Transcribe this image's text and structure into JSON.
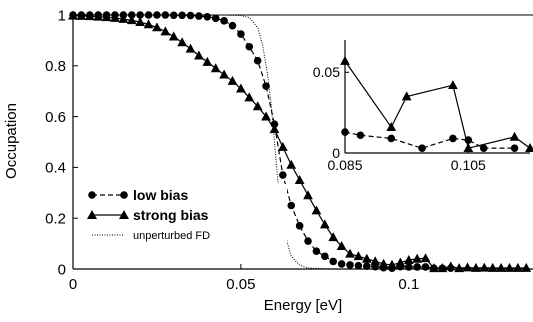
{
  "chart_data": [
    {
      "type": "line",
      "xlabel": "Energy [eV]",
      "ylabel": "Occupation",
      "xlim": [
        0,
        0.137
      ],
      "ylim": [
        0,
        1
      ],
      "xticks": [
        0,
        0.05,
        0.1
      ],
      "xtick_labels": [
        "0",
        "0.05",
        "0.1"
      ],
      "yticks": [
        0,
        0.2,
        0.4,
        0.6,
        0.8,
        1
      ],
      "ytick_labels": [
        "0",
        "0.2",
        "0.4",
        "0.6",
        "0.8",
        "1"
      ],
      "reference_line_y": 1,
      "legend_position": "bottom-left",
      "series": [
        {
          "name": "low bias",
          "marker": "circle",
          "line_style": "dashed",
          "x": [
            0,
            0.0025,
            0.005,
            0.0075,
            0.01,
            0.0125,
            0.015,
            0.0175,
            0.02,
            0.0225,
            0.025,
            0.0275,
            0.03,
            0.0325,
            0.035,
            0.0375,
            0.04,
            0.0425,
            0.045,
            0.0475,
            0.05,
            0.0525,
            0.055,
            0.0575,
            0.06,
            0.0625,
            0.065,
            0.0675,
            0.07,
            0.0725,
            0.075,
            0.0775,
            0.08,
            0.0825,
            0.085,
            0.0875,
            0.09,
            0.0925,
            0.095,
            0.0975,
            0.1,
            0.1025,
            0.105,
            0.1075,
            0.11,
            0.1125
          ],
          "y": [
            1.0,
            1.0,
            1.0,
            1.0,
            1.0,
            1.0,
            1.0,
            1.0,
            1.0,
            1.0,
            1.0,
            1.0,
            0.999,
            0.999,
            0.998,
            0.996,
            0.993,
            0.987,
            0.977,
            0.958,
            0.925,
            0.875,
            0.82,
            0.72,
            0.57,
            0.37,
            0.25,
            0.17,
            0.11,
            0.07,
            0.05,
            0.03,
            0.02,
            0.016,
            0.013,
            0.011,
            0.009,
            0.005,
            0.003,
            0.009,
            0.008,
            0.008,
            0.008,
            0.003,
            0.003,
            0.003
          ]
        },
        {
          "name": "strong bias",
          "marker": "triangle",
          "line_style": "solid",
          "x": [
            0,
            0.0025,
            0.005,
            0.0075,
            0.01,
            0.0125,
            0.015,
            0.0175,
            0.02,
            0.0225,
            0.025,
            0.0275,
            0.03,
            0.0325,
            0.035,
            0.0375,
            0.04,
            0.0425,
            0.045,
            0.0475,
            0.05,
            0.0525,
            0.055,
            0.0575,
            0.06,
            0.0625,
            0.065,
            0.0675,
            0.07,
            0.0725,
            0.075,
            0.0775,
            0.08,
            0.0825,
            0.085,
            0.0875,
            0.09,
            0.0925,
            0.095,
            0.0975,
            0.1,
            0.1025,
            0.105,
            0.1075,
            0.11,
            0.1125,
            0.115,
            0.1175,
            0.12,
            0.1225,
            0.125,
            0.1275,
            0.13,
            0.1325,
            0.135
          ],
          "y": [
            0.997,
            0.996,
            0.995,
            0.993,
            0.991,
            0.988,
            0.984,
            0.979,
            0.972,
            0.963,
            0.951,
            0.935,
            0.915,
            0.892,
            0.867,
            0.84,
            0.815,
            0.79,
            0.765,
            0.74,
            0.71,
            0.675,
            0.64,
            0.6,
            0.55,
            0.48,
            0.41,
            0.35,
            0.29,
            0.23,
            0.175,
            0.125,
            0.09,
            0.06,
            0.05,
            0.04,
            0.03,
            0.02,
            0.016,
            0.025,
            0.035,
            0.04,
            0.042,
            0.003,
            0.003,
            0.01,
            0.003,
            0.006,
            0.004,
            0.005,
            0.004,
            0.004,
            0.004,
            0.004,
            0.004
          ]
        },
        {
          "name": "unperturbed FD",
          "marker": "none",
          "line_style": "dotted",
          "x": [
            0,
            0.01,
            0.02,
            0.03,
            0.04,
            0.045,
            0.05,
            0.0525,
            0.055,
            0.0565,
            0.058,
            0.059,
            0.06,
            0.061,
            0.062,
            0.0635,
            0.065,
            0.0675,
            0.07,
            0.075,
            0.08,
            0.09,
            0.1,
            0.12,
            0.137
          ],
          "y": [
            1.0,
            1.0,
            1.0,
            1.0,
            1.0,
            1.0,
            0.998,
            0.99,
            0.95,
            0.88,
            0.76,
            0.65,
            0.5,
            0.35,
            0.24,
            0.12,
            0.05,
            0.015,
            0.004,
            0.001,
            0.0,
            0.0,
            0.0,
            0.0,
            0.0
          ]
        }
      ]
    },
    {
      "type": "line",
      "role": "inset",
      "xlim": [
        0.085,
        0.115
      ],
      "ylim": [
        0,
        0.07
      ],
      "xticks": [
        0.085,
        0.105
      ],
      "xtick_labels": [
        "0.085",
        "0.105"
      ],
      "yticks": [
        0,
        0.05
      ],
      "ytick_labels": [
        "0",
        "0.05"
      ],
      "series": [
        {
          "name": "low bias",
          "marker": "circle",
          "line_style": "dashed",
          "x": [
            0.085,
            0.0875,
            0.0925,
            0.0975,
            0.1025,
            0.105,
            0.1075,
            0.1125
          ],
          "y": [
            0.013,
            0.011,
            0.009,
            0.003,
            0.009,
            0.008,
            0.003,
            0.003
          ]
        },
        {
          "name": "strong bias",
          "marker": "triangle",
          "line_style": "solid",
          "x": [
            0.085,
            0.0925,
            0.095,
            0.1025,
            0.105,
            0.1125,
            0.115
          ],
          "y": [
            0.057,
            0.016,
            0.035,
            0.042,
            0.003,
            0.01,
            0.003
          ]
        }
      ]
    }
  ]
}
